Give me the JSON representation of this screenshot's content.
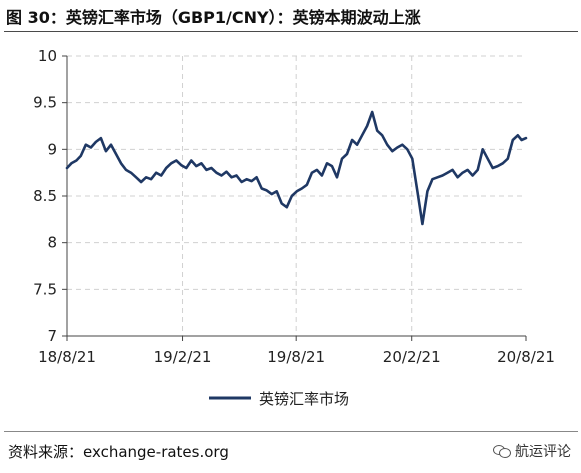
{
  "header": {
    "title": "图 30：英镑汇率市场（GBP1/CNY）：英镑本期波动上涨"
  },
  "footer": {
    "source": "资料来源：exchange-rates.org",
    "watermark": "航运评论"
  },
  "colors": {
    "line": "#1f3864",
    "grid": "#d0d0d0",
    "axis": "#444444"
  },
  "chart_data": {
    "type": "line",
    "title": "",
    "xlabel": "",
    "ylabel": "",
    "ylim": [
      7,
      10
    ],
    "yticks": [
      "10",
      "9.5",
      "9",
      "8.5",
      "8",
      "7.5",
      "7"
    ],
    "xticks": [
      "18/8/21",
      "19/2/21",
      "19/8/21",
      "20/2/21",
      "20/8/21"
    ],
    "grid": true,
    "legend": "bottom-center",
    "series": [
      {
        "name": "英镑汇率市场",
        "x": [
          "18/8/21",
          "18/8/28",
          "18/9/5",
          "18/9/12",
          "18/9/20",
          "18/9/28",
          "18/10/6",
          "18/10/14",
          "18/10/22",
          "18/10/30",
          "18/11/7",
          "18/11/15",
          "18/11/23",
          "18/12/1",
          "18/12/9",
          "18/12/17",
          "18/12/25",
          "19/1/2",
          "19/1/10",
          "19/1/18",
          "19/1/26",
          "19/2/3",
          "19/2/11",
          "19/2/19",
          "19/2/27",
          "19/3/7",
          "19/3/15",
          "19/3/23",
          "19/3/31",
          "19/4/8",
          "19/4/16",
          "19/4/24",
          "19/5/2",
          "19/5/10",
          "19/5/18",
          "19/5/26",
          "19/6/3",
          "19/6/11",
          "19/6/19",
          "19/6/27",
          "19/7/5",
          "19/7/13",
          "19/7/21",
          "19/7/29",
          "19/8/6",
          "19/8/14",
          "19/8/22",
          "19/8/30",
          "19/9/7",
          "19/9/15",
          "19/9/23",
          "19/10/1",
          "19/10/9",
          "19/10/17",
          "19/10/25",
          "19/11/2",
          "19/11/10",
          "19/11/18",
          "19/11/26",
          "19/12/4",
          "19/12/12",
          "19/12/20",
          "19/12/28",
          "20/1/5",
          "20/1/13",
          "20/1/21",
          "20/1/29",
          "20/2/6",
          "20/2/14",
          "20/2/22",
          "20/3/1",
          "20/3/9",
          "20/3/17",
          "20/3/25",
          "20/4/2",
          "20/4/10",
          "20/4/18",
          "20/4/26",
          "20/5/4",
          "20/5/12",
          "20/5/20",
          "20/5/28",
          "20/6/5",
          "20/6/13",
          "20/6/21",
          "20/6/29",
          "20/7/7",
          "20/7/15",
          "20/7/23",
          "20/7/31",
          "20/8/8",
          "20/8/14",
          "20/8/21"
        ],
        "values": [
          8.8,
          8.85,
          8.88,
          8.93,
          9.05,
          9.02,
          9.08,
          9.12,
          8.98,
          9.05,
          8.95,
          8.85,
          8.78,
          8.75,
          8.7,
          8.65,
          8.7,
          8.68,
          8.75,
          8.72,
          8.8,
          8.85,
          8.88,
          8.83,
          8.8,
          8.88,
          8.82,
          8.85,
          8.78,
          8.8,
          8.75,
          8.72,
          8.76,
          8.7,
          8.72,
          8.65,
          8.68,
          8.66,
          8.7,
          8.58,
          8.56,
          8.52,
          8.55,
          8.42,
          8.38,
          8.5,
          8.55,
          8.58,
          8.62,
          8.75,
          8.78,
          8.72,
          8.85,
          8.82,
          8.7,
          8.9,
          8.95,
          9.1,
          9.05,
          9.15,
          9.25,
          9.4,
          9.2,
          9.15,
          9.05,
          8.98,
          9.02,
          9.05,
          9.0,
          8.9,
          8.55,
          8.2,
          8.55,
          8.68,
          8.7,
          8.72,
          8.75,
          8.78,
          8.7,
          8.75,
          8.78,
          8.72,
          8.78,
          9.0,
          8.9,
          8.8,
          8.82,
          8.85,
          8.9,
          9.1,
          9.15,
          9.1,
          9.12
        ]
      }
    ]
  }
}
